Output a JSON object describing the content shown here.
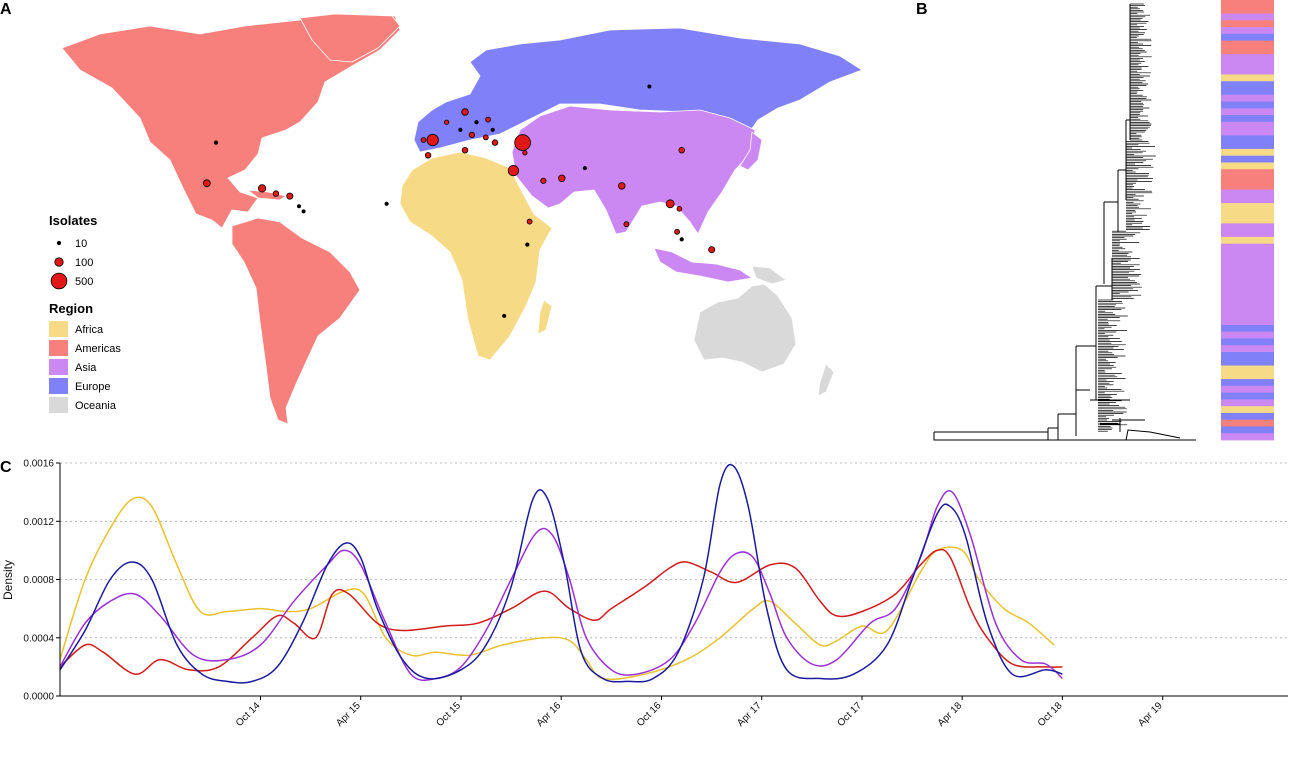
{
  "panels": {
    "a": "A",
    "b": "B",
    "c": "C"
  },
  "colors": {
    "Africa": "#f7da86",
    "Americas": "#f7807c",
    "Asia": "#cc88f2",
    "Europe": "#8080f8",
    "Oceania": "#d9d9d9",
    "marker": "#e01818"
  },
  "map_legend": {
    "isolates_title": "Isolates",
    "isolates": [
      {
        "label": "10",
        "value": 10
      },
      {
        "label": "100",
        "value": 100
      },
      {
        "label": "500",
        "value": 500
      }
    ],
    "region_title": "Region",
    "regions": [
      "Africa",
      "Americas",
      "Asia",
      "Europe",
      "Oceania"
    ]
  },
  "map_isolates": [
    {
      "lon": -98,
      "lat": 39,
      "n": 10
    },
    {
      "lon": -102,
      "lat": 23,
      "n": 60
    },
    {
      "lon": -78,
      "lat": 21,
      "n": 70
    },
    {
      "lon": -72,
      "lat": 19,
      "n": 30
    },
    {
      "lon": -66,
      "lat": 18,
      "n": 40
    },
    {
      "lon": -62,
      "lat": 14,
      "n": 8
    },
    {
      "lon": -60,
      "lat": 12,
      "n": 8
    },
    {
      "lon": -24,
      "lat": 15,
      "n": 10
    },
    {
      "lon": -8,
      "lat": 40,
      "n": 15
    },
    {
      "lon": -4,
      "lat": 40,
      "n": 230
    },
    {
      "lon": -6,
      "lat": 34,
      "n": 30
    },
    {
      "lon": 2,
      "lat": 47,
      "n": 12
    },
    {
      "lon": 8,
      "lat": 44,
      "n": 10
    },
    {
      "lon": 10,
      "lat": 36,
      "n": 30
    },
    {
      "lon": 13,
      "lat": 42,
      "n": 25
    },
    {
      "lon": 10,
      "lat": 51,
      "n": 50
    },
    {
      "lon": 15,
      "lat": 47,
      "n": 10
    },
    {
      "lon": 19,
      "lat": 41,
      "n": 20
    },
    {
      "lon": 20,
      "lat": 48,
      "n": 20
    },
    {
      "lon": 22,
      "lat": 44,
      "n": 10
    },
    {
      "lon": 23,
      "lat": 39,
      "n": 30
    },
    {
      "lon": 35,
      "lat": 39,
      "n": 500
    },
    {
      "lon": 31,
      "lat": 28,
      "n": 180
    },
    {
      "lon": 36,
      "lat": 35,
      "n": 12
    },
    {
      "lon": 44,
      "lat": 24,
      "n": 25
    },
    {
      "lon": 52,
      "lat": 25,
      "n": 50
    },
    {
      "lon": 62,
      "lat": 29,
      "n": 8
    },
    {
      "lon": 78,
      "lat": 22,
      "n": 50
    },
    {
      "lon": 80,
      "lat": 7,
      "n": 20
    },
    {
      "lon": 104,
      "lat": 36,
      "n": 30
    },
    {
      "lon": 99,
      "lat": 15,
      "n": 90
    },
    {
      "lon": 103,
      "lat": 13,
      "n": 15
    },
    {
      "lon": 102,
      "lat": 4,
      "n": 20
    },
    {
      "lon": 104,
      "lat": 1,
      "n": 10
    },
    {
      "lon": 117,
      "lat": -3,
      "n": 40
    },
    {
      "lon": 38,
      "lat": 8,
      "n": 20
    },
    {
      "lon": 37,
      "lat": -1,
      "n": 10
    },
    {
      "lon": 27,
      "lat": -29,
      "n": 8
    },
    {
      "lon": 90,
      "lat": 61,
      "n": 8
    }
  ],
  "tree_strip": {
    "colors": [
      "Americas",
      "Americas",
      "Asia",
      "Americas",
      "Asia",
      "Europe",
      "Americas",
      "Americas",
      "Asia",
      "Asia",
      "Asia",
      "Africa",
      "Europe",
      "Europe",
      "Asia",
      "Europe",
      "Asia",
      "Europe",
      "Asia",
      "Asia",
      "Europe",
      "Europe",
      "Africa",
      "Europe",
      "Africa",
      "Americas",
      "Americas",
      "Americas",
      "Asia",
      "Asia",
      "Africa",
      "Africa",
      "Africa",
      "Asia",
      "Asia",
      "Africa",
      "Asia",
      "Asia",
      "Asia",
      "Asia",
      "Asia",
      "Asia",
      "Asia",
      "Asia",
      "Asia",
      "Asia",
      "Asia",
      "Asia",
      "Europe",
      "Asia",
      "Europe",
      "Asia",
      "Europe",
      "Europe",
      "Africa",
      "Africa",
      "Europe",
      "Asia",
      "Europe",
      "Asia",
      "Africa",
      "Europe",
      "Americas",
      "Europe",
      "Asia"
    ]
  },
  "chart_data": {
    "type": "line",
    "ylabel": "Density",
    "ylim": [
      0,
      0.0016
    ],
    "yticks": [
      "0.0000",
      "0.0004",
      "0.0008",
      "0.0012",
      "0.0016"
    ],
    "ytick_values": [
      0,
      0.0004,
      0.0008,
      0.0012,
      0.0016
    ],
    "xlim": [
      0,
      73.5
    ],
    "xticks": [
      {
        "label": "Oct 14",
        "x": 12
      },
      {
        "label": "Apr 15",
        "x": 18
      },
      {
        "label": "Oct 15",
        "x": 24
      },
      {
        "label": "Apr 16",
        "x": 30
      },
      {
        "label": "Oct 16",
        "x": 36
      },
      {
        "label": "Apr 17",
        "x": 42
      },
      {
        "label": "Oct 17",
        "x": 48
      },
      {
        "label": "Apr 18",
        "x": 54
      },
      {
        "label": "Oct 18",
        "x": 60
      },
      {
        "label": "Apr 19",
        "x": 66
      }
    ],
    "grid": "horizontal dotted",
    "series": [
      {
        "color": "#e8c12c",
        "points": [
          [
            0,
            0.00025
          ],
          [
            1.5,
            0.0008
          ],
          [
            3,
            0.00115
          ],
          [
            4.3,
            0.00135
          ],
          [
            5.5,
            0.0013
          ],
          [
            7,
            0.0009
          ],
          [
            8.4,
            0.00058
          ],
          [
            10,
            0.00058
          ],
          [
            12,
            0.0006
          ],
          [
            13.5,
            0.00058
          ],
          [
            15,
            0.0006
          ],
          [
            17,
            0.00072
          ],
          [
            18.2,
            0.0007
          ],
          [
            19.5,
            0.0004
          ],
          [
            21,
            0.00028
          ],
          [
            22.5,
            0.0003
          ],
          [
            24.5,
            0.00028
          ],
          [
            26.5,
            0.00035
          ],
          [
            29,
            0.0004
          ],
          [
            30.5,
            0.00038
          ],
          [
            31.5,
            0.00025
          ],
          [
            32.5,
            0.00012
          ],
          [
            35,
            0.00015
          ],
          [
            37.5,
            0.00025
          ],
          [
            39.5,
            0.0004
          ],
          [
            41.5,
            0.0006
          ],
          [
            42.5,
            0.00065
          ],
          [
            44,
            0.0005
          ],
          [
            45.5,
            0.00035
          ],
          [
            46.5,
            0.00038
          ],
          [
            48,
            0.00048
          ],
          [
            49.5,
            0.00045
          ],
          [
            51.5,
            0.00085
          ],
          [
            52.5,
            0.001
          ],
          [
            54,
            0.001
          ],
          [
            55,
            0.0008
          ],
          [
            56.5,
            0.0006
          ],
          [
            58,
            0.0005
          ],
          [
            59.5,
            0.00035
          ]
        ]
      },
      {
        "color": "#d11a1a",
        "points": [
          [
            0,
            0.0002
          ],
          [
            1.5,
            0.00035
          ],
          [
            2.6,
            0.0003
          ],
          [
            4.5,
            0.00015
          ],
          [
            6,
            0.00025
          ],
          [
            7.7,
            0.00018
          ],
          [
            9.5,
            0.0002
          ],
          [
            11.5,
            0.0004
          ],
          [
            13,
            0.00055
          ],
          [
            14,
            0.0005
          ],
          [
            15.3,
            0.0004
          ],
          [
            16.3,
            0.0007
          ],
          [
            17.3,
            0.0007
          ],
          [
            19,
            0.0005
          ],
          [
            20.5,
            0.00045
          ],
          [
            23,
            0.00048
          ],
          [
            25,
            0.0005
          ],
          [
            27,
            0.0006
          ],
          [
            29,
            0.00072
          ],
          [
            30.5,
            0.0006
          ],
          [
            32,
            0.00052
          ],
          [
            33,
            0.0006
          ],
          [
            35,
            0.00075
          ],
          [
            36.5,
            0.00088
          ],
          [
            37.5,
            0.00092
          ],
          [
            39,
            0.00085
          ],
          [
            40.5,
            0.00078
          ],
          [
            42.5,
            0.0009
          ],
          [
            44,
            0.00088
          ],
          [
            45.5,
            0.00065
          ],
          [
            46.5,
            0.00055
          ],
          [
            48,
            0.00058
          ],
          [
            50,
            0.0007
          ],
          [
            51.5,
            0.0009
          ],
          [
            52.5,
            0.001
          ],
          [
            53.3,
            0.00095
          ],
          [
            54.5,
            0.0006
          ],
          [
            55.5,
            0.0004
          ],
          [
            57,
            0.00022
          ],
          [
            59,
            0.0002
          ],
          [
            60,
            0.0002
          ]
        ]
      },
      {
        "color": "#9b30d9",
        "points": [
          [
            0,
            0.0002
          ],
          [
            1.5,
            0.0005
          ],
          [
            3,
            0.00065
          ],
          [
            4.5,
            0.0007
          ],
          [
            6,
            0.00055
          ],
          [
            8,
            0.00028
          ],
          [
            10,
            0.00025
          ],
          [
            12,
            0.00035
          ],
          [
            14,
            0.00065
          ],
          [
            16,
            0.0009
          ],
          [
            17,
            0.001
          ],
          [
            18,
            0.0009
          ],
          [
            19.5,
            0.0005
          ],
          [
            21,
            0.00015
          ],
          [
            22.5,
            0.00012
          ],
          [
            24,
            0.0002
          ],
          [
            25.5,
            0.00045
          ],
          [
            27,
            0.0008
          ],
          [
            28.5,
            0.00112
          ],
          [
            29.5,
            0.0011
          ],
          [
            30.5,
            0.0008
          ],
          [
            31.5,
            0.0004
          ],
          [
            33,
            0.00018
          ],
          [
            34.5,
            0.00015
          ],
          [
            36.5,
            0.00025
          ],
          [
            38,
            0.0005
          ],
          [
            39.5,
            0.00085
          ],
          [
            40.5,
            0.00098
          ],
          [
            41.5,
            0.00095
          ],
          [
            42.5,
            0.0007
          ],
          [
            43.5,
            0.0004
          ],
          [
            45,
            0.00022
          ],
          [
            46.5,
            0.00025
          ],
          [
            48.5,
            0.0005
          ],
          [
            50,
            0.0006
          ],
          [
            51.5,
            0.00095
          ],
          [
            52.5,
            0.0013
          ],
          [
            53.4,
            0.0014
          ],
          [
            54.5,
            0.0011
          ],
          [
            56,
            0.0005
          ],
          [
            57.5,
            0.00025
          ],
          [
            59,
            0.00022
          ],
          [
            60,
            0.00012
          ]
        ]
      },
      {
        "color": "#1a1a9e",
        "points": [
          [
            0,
            0.00018
          ],
          [
            1.5,
            0.00045
          ],
          [
            3,
            0.0008
          ],
          [
            4.3,
            0.00092
          ],
          [
            5.5,
            0.0008
          ],
          [
            7,
            0.00035
          ],
          [
            8.5,
            0.00015
          ],
          [
            10,
            0.0001
          ],
          [
            11.5,
            0.0001
          ],
          [
            13,
            0.0002
          ],
          [
            14.5,
            0.0005
          ],
          [
            16,
            0.0009
          ],
          [
            17.1,
            0.00105
          ],
          [
            18,
            0.00095
          ],
          [
            19,
            0.0006
          ],
          [
            20.5,
            0.00025
          ],
          [
            22,
            0.00012
          ],
          [
            24,
            0.00018
          ],
          [
            25.5,
            0.00035
          ],
          [
            27,
            0.00075
          ],
          [
            28.3,
            0.00135
          ],
          [
            29.2,
            0.00135
          ],
          [
            30.2,
            0.0009
          ],
          [
            31.2,
            0.0003
          ],
          [
            32.5,
            0.00012
          ],
          [
            34,
            0.0001
          ],
          [
            35.5,
            0.00012
          ],
          [
            37,
            0.0003
          ],
          [
            38.5,
            0.0008
          ],
          [
            39.5,
            0.00145
          ],
          [
            40.3,
            0.00158
          ],
          [
            41.2,
            0.0013
          ],
          [
            42.3,
            0.0006
          ],
          [
            43.5,
            0.00018
          ],
          [
            45.5,
            0.00012
          ],
          [
            47.5,
            0.00015
          ],
          [
            49.5,
            0.00035
          ],
          [
            51,
            0.0008
          ],
          [
            52.5,
            0.00125
          ],
          [
            53.3,
            0.0013
          ],
          [
            54.2,
            0.0011
          ],
          [
            55.5,
            0.0005
          ],
          [
            57,
            0.00015
          ],
          [
            59,
            0.00018
          ],
          [
            60,
            0.00015
          ]
        ]
      }
    ]
  }
}
